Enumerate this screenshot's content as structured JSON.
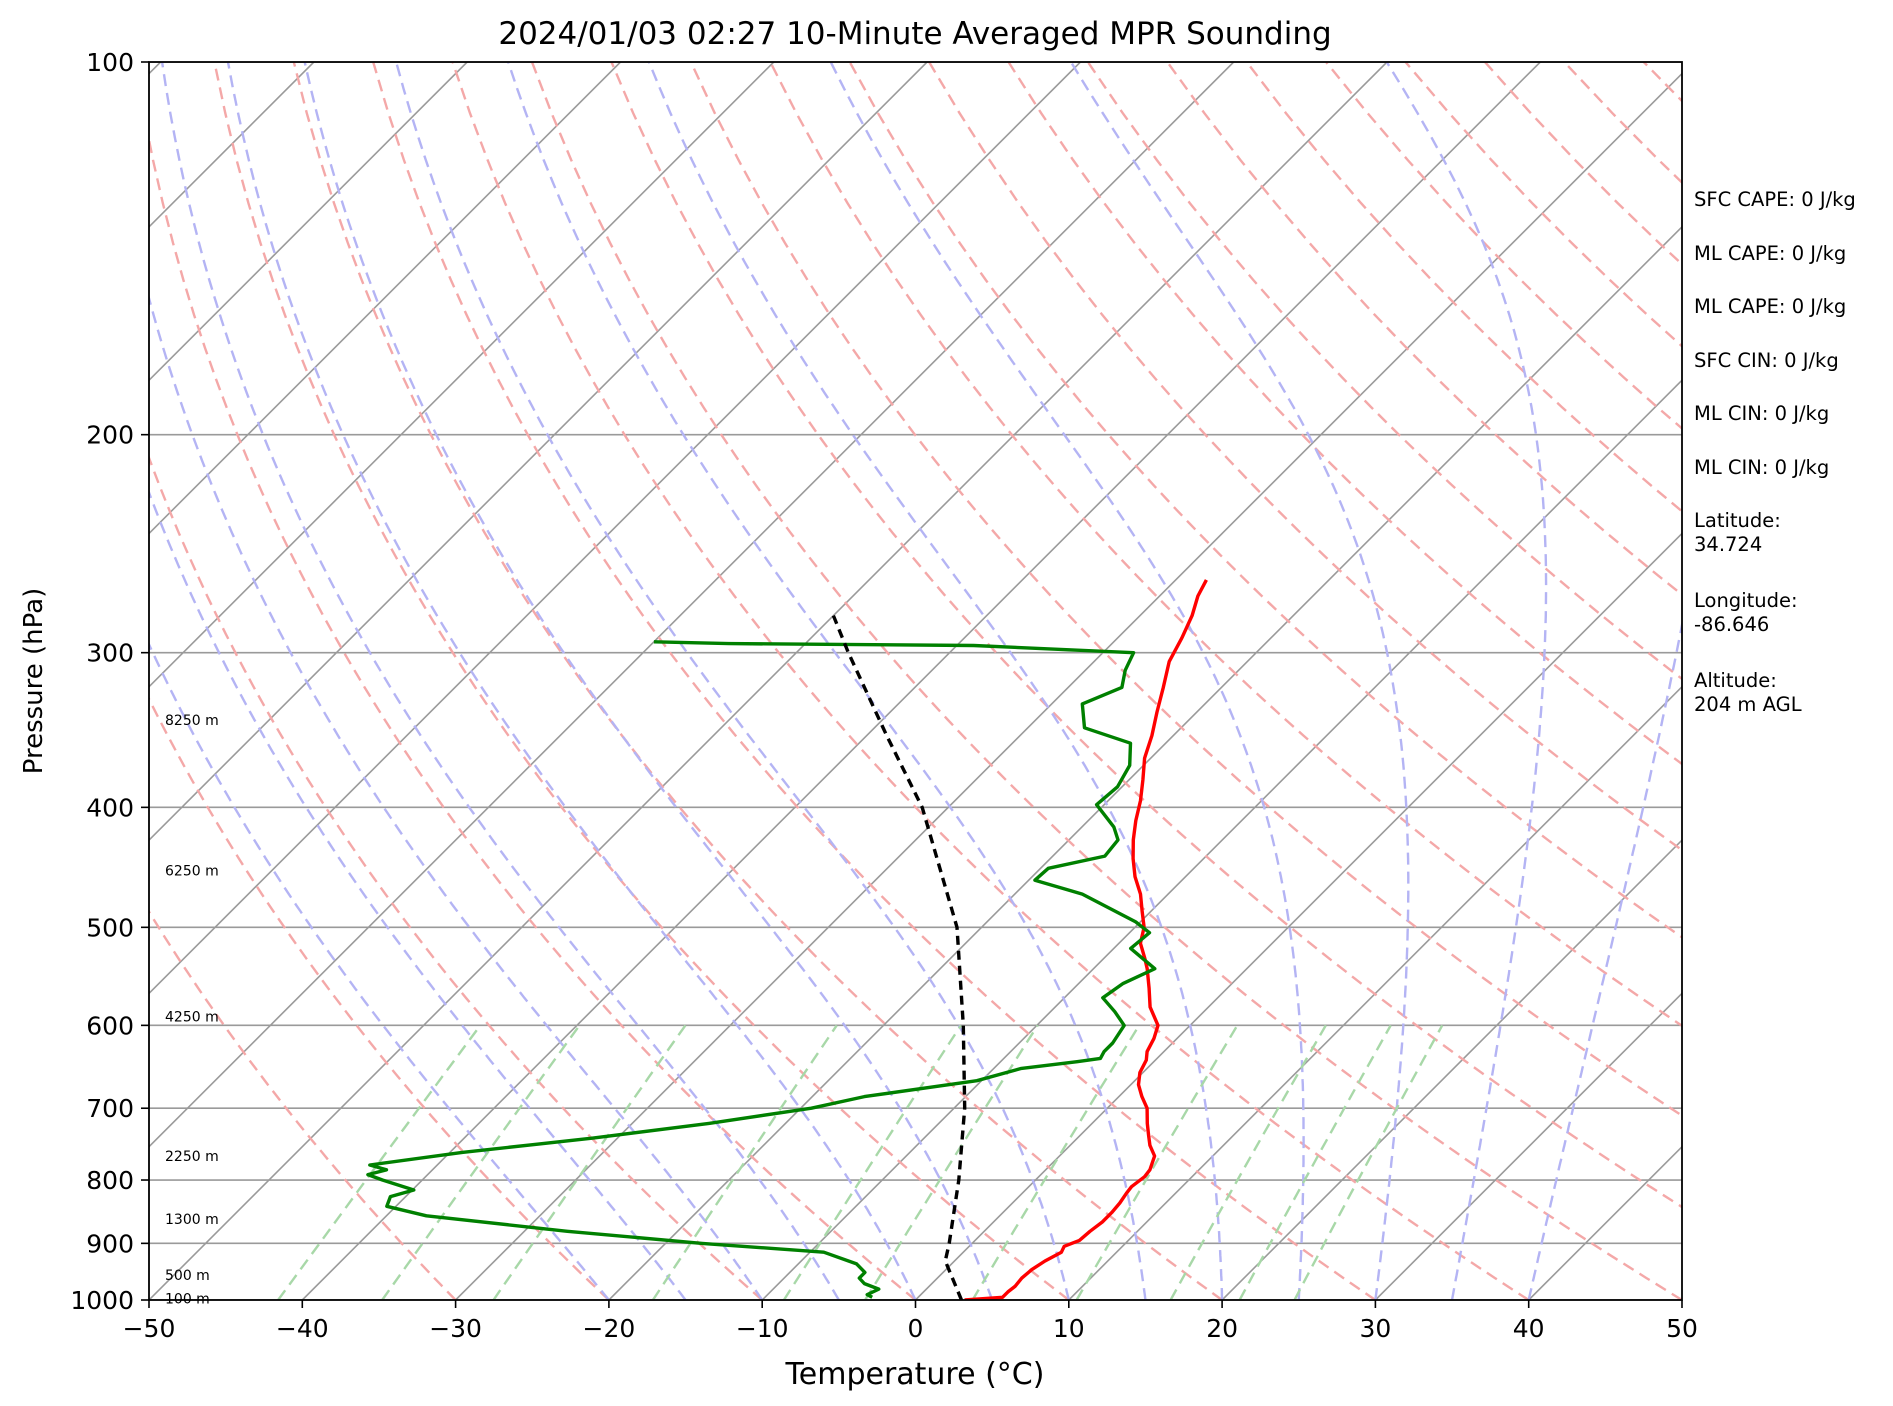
{
  "chart_data": {
    "type": "line",
    "title": "2024/01/03 02:27 10-Minute Averaged MPR Sounding",
    "xlabel": "Temperature (°C)",
    "ylabel": "Pressure (hPa)",
    "xlim": [
      -50,
      50
    ],
    "ylim": [
      1000,
      100
    ],
    "y_scale": "log",
    "skew": "skew-T / log-P diagram",
    "x_ticks": [
      -50,
      -40,
      -30,
      -20,
      -10,
      0,
      10,
      20,
      30,
      40,
      50
    ],
    "y_ticks": [
      100,
      200,
      300,
      400,
      500,
      600,
      700,
      800,
      900,
      1000
    ],
    "x_tick_labels": [
      "−50",
      "−40",
      "−30",
      "−20",
      "−10",
      "0",
      "10",
      "20",
      "30",
      "40",
      "50"
    ],
    "y_tick_labels": [
      "100",
      "200",
      "300",
      "400",
      "500",
      "600",
      "700",
      "800",
      "900",
      "1000"
    ],
    "height_labels": [
      {
        "p": 340,
        "text": "8250 m"
      },
      {
        "p": 450,
        "text": "6250 m"
      },
      {
        "p": 590,
        "text": "4250 m"
      },
      {
        "p": 765,
        "text": "2250 m"
      },
      {
        "p": 860,
        "text": "1300 m"
      },
      {
        "p": 955,
        "text": "500 m"
      },
      {
        "p": 997,
        "text": "100 m"
      }
    ],
    "series": [
      {
        "role": "temperature",
        "color": "#ff0000",
        "points": [
          [
            1000,
            3.2
          ],
          [
            995,
            5.5
          ],
          [
            985,
            5.5
          ],
          [
            975,
            5.6
          ],
          [
            960,
            5.5
          ],
          [
            945,
            5.6
          ],
          [
            930,
            5.9
          ],
          [
            915,
            6.4
          ],
          [
            905,
            6.2
          ],
          [
            895,
            6.8
          ],
          [
            880,
            6.9
          ],
          [
            865,
            7.1
          ],
          [
            850,
            7.1
          ],
          [
            835,
            7.0
          ],
          [
            820,
            6.8
          ],
          [
            810,
            6.7
          ],
          [
            795,
            6.9
          ],
          [
            785,
            6.8
          ],
          [
            765,
            6.2
          ],
          [
            750,
            5.2
          ],
          [
            735,
            4.4
          ],
          [
            720,
            3.6
          ],
          [
            700,
            2.6
          ],
          [
            685,
            1.5
          ],
          [
            670,
            0.5
          ],
          [
            655,
            -0.2
          ],
          [
            640,
            -0.6
          ],
          [
            630,
            -1.1
          ],
          [
            615,
            -1.5
          ],
          [
            600,
            -2.1
          ],
          [
            580,
            -3.8
          ],
          [
            560,
            -5.1
          ],
          [
            540,
            -6.5
          ],
          [
            530,
            -7.3
          ],
          [
            515,
            -8.6
          ],
          [
            500,
            -9.4
          ],
          [
            485,
            -10.6
          ],
          [
            470,
            -11.8
          ],
          [
            455,
            -13.3
          ],
          [
            440,
            -14.6
          ],
          [
            425,
            -15.8
          ],
          [
            410,
            -16.9
          ],
          [
            395,
            -17.9
          ],
          [
            380,
            -19.1
          ],
          [
            365,
            -20.4
          ],
          [
            350,
            -21.4
          ],
          [
            335,
            -22.6
          ],
          [
            320,
            -23.8
          ],
          [
            305,
            -25.1
          ],
          [
            292,
            -25.8
          ],
          [
            280,
            -26.6
          ],
          [
            270,
            -27.5
          ],
          [
            262,
            -28.0
          ]
        ]
      },
      {
        "role": "dewpoint",
        "color": "#008000",
        "points": [
          [
            995,
            -3.0
          ],
          [
            990,
            -3.5
          ],
          [
            980,
            -3.1
          ],
          [
            970,
            -4.4
          ],
          [
            960,
            -5.1
          ],
          [
            950,
            -5.1
          ],
          [
            935,
            -6.2
          ],
          [
            915,
            -9.1
          ],
          [
            900,
            -17.6
          ],
          [
            880,
            -27.2
          ],
          [
            855,
            -37.4
          ],
          [
            840,
            -40.6
          ],
          [
            825,
            -41.0
          ],
          [
            815,
            -39.9
          ],
          [
            800,
            -42.6
          ],
          [
            792,
            -43.9
          ],
          [
            785,
            -43.0
          ],
          [
            778,
            -44.4
          ],
          [
            760,
            -39.2
          ],
          [
            740,
            -31.6
          ],
          [
            720,
            -25.0
          ],
          [
            700,
            -19.3
          ],
          [
            685,
            -16.6
          ],
          [
            665,
            -10.3
          ],
          [
            650,
            -8.2
          ],
          [
            642,
            -5.0
          ],
          [
            638,
            -3.7
          ],
          [
            630,
            -3.9
          ],
          [
            620,
            -3.9
          ],
          [
            600,
            -4.3
          ],
          [
            585,
            -5.8
          ],
          [
            570,
            -7.5
          ],
          [
            555,
            -7.1
          ],
          [
            540,
            -6.0
          ],
          [
            520,
            -8.9
          ],
          [
            505,
            -8.7
          ],
          [
            495,
            -10.3
          ],
          [
            470,
            -15.6
          ],
          [
            458,
            -19.6
          ],
          [
            448,
            -19.5
          ],
          [
            438,
            -16.6
          ],
          [
            425,
            -16.8
          ],
          [
            415,
            -17.9
          ],
          [
            398,
            -20.5
          ],
          [
            385,
            -20.3
          ],
          [
            370,
            -20.9
          ],
          [
            355,
            -22.3
          ],
          [
            345,
            -26.3
          ],
          [
            330,
            -28.0
          ],
          [
            320,
            -26.5
          ],
          [
            310,
            -27.4
          ],
          [
            300,
            -28.0
          ],
          [
            296,
            -38.9
          ],
          [
            295,
            -55.0
          ],
          [
            294,
            -60.0
          ]
        ]
      },
      {
        "role": "parcel",
        "color": "#000000",
        "dashed": true,
        "points": [
          [
            1000,
            3.0
          ],
          [
            930,
            -0.6
          ],
          [
            900,
            -1.5
          ],
          [
            800,
            -5.0
          ],
          [
            700,
            -9.3
          ],
          [
            600,
            -14.8
          ],
          [
            500,
            -21.6
          ],
          [
            400,
            -31.7
          ],
          [
            350,
            -38.7
          ],
          [
            300,
            -46.6
          ],
          [
            280,
            -50.0
          ]
        ]
      }
    ]
  },
  "side_info": {
    "sfc_cape": "SFC CAPE: 0 J/kg",
    "ml_cape_1": "ML CAPE: 0 J/kg",
    "ml_cape_2": "ML CAPE: 0 J/kg",
    "sfc_cin": "SFC CIN: 0 J/kg",
    "ml_cin_1": "ML CIN: 0 J/kg",
    "ml_cin_2": "ML CIN: 0 J/kg",
    "latitude_label": "Latitude:",
    "latitude_value": "34.724",
    "longitude_label": "Longitude:",
    "longitude_value": "-86.646",
    "altitude_label": "Altitude:",
    "altitude_value": "204 m AGL"
  },
  "colors": {
    "temperature": "#ff0000",
    "dewpoint": "#008000",
    "parcel": "#000000",
    "dry_adiabats": "#f4a8a8",
    "moist_adiabats": "#b4b4f4",
    "mixing_ratio": "#a8d8a8",
    "isotherms": "#9a9a9a",
    "isobars": "#9a9a9a"
  }
}
